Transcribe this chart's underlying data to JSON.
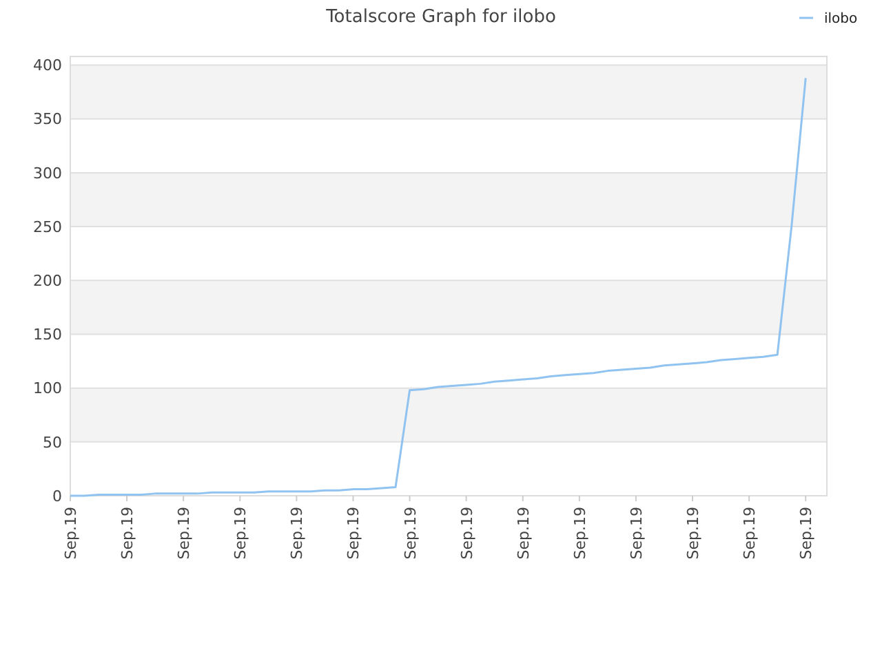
{
  "chart_data": {
    "type": "line",
    "title": "Totalscore Graph for ilobo",
    "categories": [
      "Sep.19",
      null,
      null,
      null,
      "Sep.19",
      null,
      null,
      null,
      "Sep.19",
      null,
      null,
      null,
      "Sep.19",
      null,
      null,
      null,
      "Sep.19",
      null,
      null,
      null,
      "Sep.19",
      null,
      null,
      null,
      "Sep.19",
      null,
      null,
      null,
      "Sep.19",
      null,
      null,
      null,
      "Sep.19",
      null,
      null,
      null,
      "Sep.19",
      null,
      null,
      null,
      "Sep.19",
      null,
      null,
      null,
      "Sep.19",
      null,
      null,
      null,
      "Sep.19",
      null,
      null,
      null,
      "Sep.19",
      null
    ],
    "ylim": [
      0,
      408
    ],
    "yticks": [
      0,
      50,
      100,
      150,
      200,
      250,
      300,
      350,
      400
    ],
    "grid": "y",
    "legend": "top right",
    "marker": "none",
    "line_style": "solid",
    "series": [
      {
        "name": "ilobo",
        "color": "#90c3f0",
        "values": [
          0,
          0,
          1,
          1,
          1,
          1,
          2,
          2,
          2,
          2,
          3,
          3,
          3,
          3,
          4,
          4,
          4,
          4,
          5,
          5,
          6,
          6,
          7,
          8,
          98,
          99,
          101,
          102,
          103,
          104,
          106,
          107,
          108,
          109,
          111,
          112,
          113,
          114,
          116,
          117,
          118,
          119,
          121,
          122,
          123,
          124,
          126,
          127,
          128,
          129,
          131,
          250,
          388,
          null
        ]
      }
    ]
  }
}
